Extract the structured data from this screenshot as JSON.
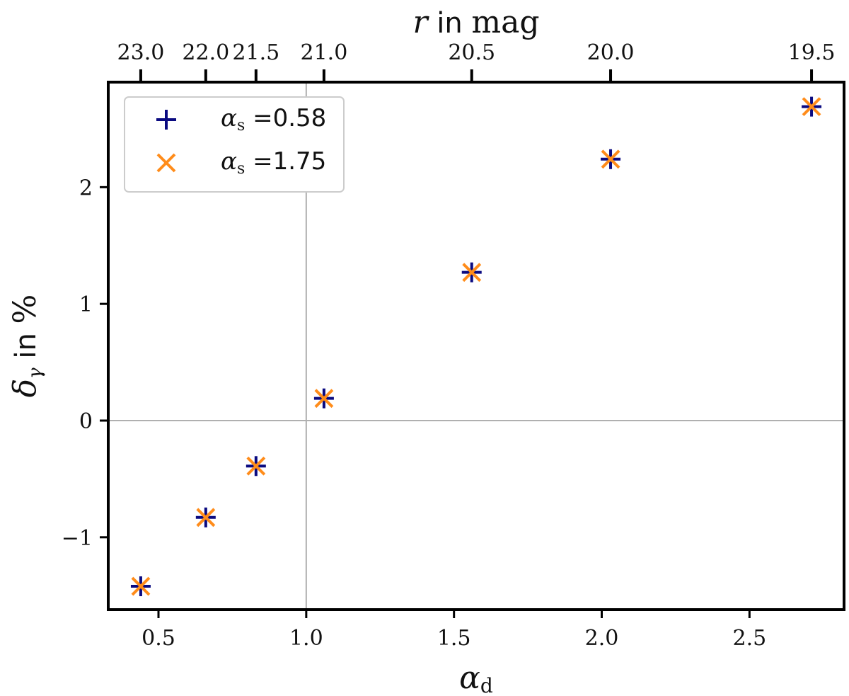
{
  "chart_data": {
    "type": "scatter",
    "xlabel": "α_d",
    "xlabel_main": "α",
    "xlabel_sub": "d",
    "ylabel_main": "δ",
    "ylabel_sub": "γ",
    "ylabel_mid": " in ",
    "ylabel_unit": "%",
    "top_xlabel_var": "r",
    "top_xlabel_mid": " in ",
    "top_xlabel_unit": "mag",
    "xlim": [
      0.33,
      2.82
    ],
    "ylim": [
      -1.62,
      2.9
    ],
    "x_ticks": [
      0.5,
      1.0,
      1.5,
      2.0,
      2.5
    ],
    "x_tick_labels": [
      "0.5",
      "1.0",
      "1.5",
      "2.0",
      "2.5"
    ],
    "y_ticks": [
      -1,
      0,
      1,
      2
    ],
    "y_tick_labels": [
      "−1",
      "0",
      "1",
      "2"
    ],
    "top_ticks": [
      {
        "alpha_d": 0.44,
        "label": "23.0"
      },
      {
        "alpha_d": 0.66,
        "label": "22.0"
      },
      {
        "alpha_d": 0.83,
        "label": "21.5"
      },
      {
        "alpha_d": 1.06,
        "label": "21.0"
      },
      {
        "alpha_d": 1.56,
        "label": "20.5"
      },
      {
        "alpha_d": 2.03,
        "label": "20.0"
      },
      {
        "alpha_d": 2.71,
        "label": "19.5"
      }
    ],
    "reference_lines": {
      "x": 1.0,
      "y": 0
    },
    "grid": false,
    "legend_position": "top-left",
    "series": [
      {
        "name": "α_s =0.58",
        "legend_alpha": "α",
        "legend_sub": "s",
        "legend_eq": " =",
        "legend_num": "0.58",
        "marker": "plus",
        "color": "#0a0a80",
        "x": [
          0.44,
          0.66,
          0.83,
          1.06,
          1.56,
          2.03,
          2.71
        ],
        "y": [
          -1.42,
          -0.83,
          -0.39,
          0.19,
          1.27,
          2.24,
          2.69
        ]
      },
      {
        "name": "α_s =1.75",
        "legend_alpha": "α",
        "legend_sub": "s",
        "legend_eq": " =",
        "legend_num": "1.75",
        "marker": "x",
        "color": "#ff8c1a",
        "x": [
          0.44,
          0.66,
          0.83,
          1.06,
          1.56,
          2.03,
          2.71
        ],
        "y": [
          -1.42,
          -0.83,
          -0.39,
          0.19,
          1.27,
          2.24,
          2.69
        ]
      }
    ]
  }
}
